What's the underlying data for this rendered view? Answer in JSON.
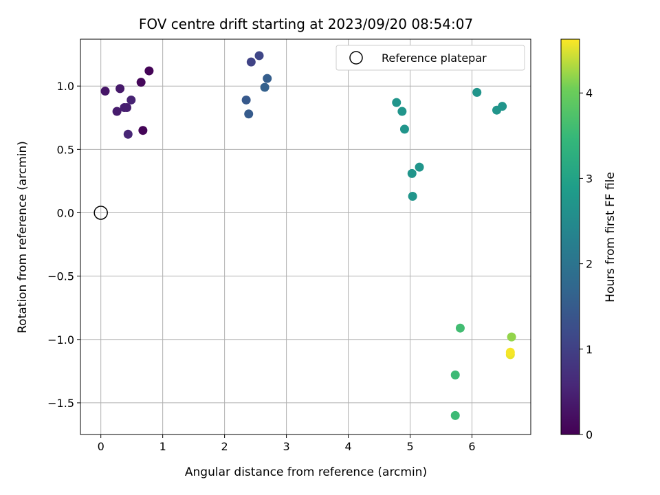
{
  "chart_data": {
    "type": "scatter",
    "title": "FOV centre drift starting at 2023/09/20 08:54:07",
    "xlabel": "Angular distance from reference (arcmin)",
    "ylabel": "Rotation from reference (arcmin)",
    "colorbar_label": "Hours from first FF file",
    "xlim": [
      -0.33,
      6.95
    ],
    "ylim": [
      -1.75,
      1.37
    ],
    "clim": [
      0,
      4.63
    ],
    "x_ticks": [
      0,
      1,
      2,
      3,
      4,
      5,
      6
    ],
    "x_tick_labels": [
      "0",
      "1",
      "2",
      "3",
      "4",
      "5",
      "6"
    ],
    "y_ticks": [
      1.0,
      0.5,
      0.0,
      -0.5,
      -1.0,
      -1.5
    ],
    "y_tick_labels": [
      "1.0",
      "0.5",
      "0.0",
      "−0.5",
      "−1.0",
      "−1.5"
    ],
    "colorbar_ticks": [
      0,
      1,
      2,
      3,
      4
    ],
    "colorbar_tick_labels": [
      "0",
      "1",
      "2",
      "3",
      "4"
    ],
    "colormap": "viridis",
    "grid": true,
    "legend_position": "top-right",
    "legend_entries": [
      "Reference platepar"
    ],
    "reference_point": {
      "name": "Reference platepar",
      "x": 0,
      "y": 0
    },
    "series": [
      {
        "points": [
          {
            "x": 0.07,
            "y": 0.96,
            "h": 0.3
          },
          {
            "x": 0.31,
            "y": 0.98,
            "h": 0.35
          },
          {
            "x": 0.78,
            "y": 1.12,
            "h": 0.05
          },
          {
            "x": 0.65,
            "y": 1.03,
            "h": 0.1
          },
          {
            "x": 0.26,
            "y": 0.8,
            "h": 0.4
          },
          {
            "x": 0.38,
            "y": 0.83,
            "h": 0.45
          },
          {
            "x": 0.42,
            "y": 0.83,
            "h": 0.45
          },
          {
            "x": 0.49,
            "y": 0.89,
            "h": 0.5
          },
          {
            "x": 0.68,
            "y": 0.65,
            "h": 0.05
          },
          {
            "x": 0.44,
            "y": 0.62,
            "h": 0.55
          },
          {
            "x": 2.43,
            "y": 1.19,
            "h": 1.05
          },
          {
            "x": 2.56,
            "y": 1.24,
            "h": 1.1
          },
          {
            "x": 2.69,
            "y": 1.06,
            "h": 1.55
          },
          {
            "x": 2.65,
            "y": 0.99,
            "h": 1.6
          },
          {
            "x": 2.35,
            "y": 0.89,
            "h": 1.45
          },
          {
            "x": 2.39,
            "y": 0.78,
            "h": 1.5
          },
          {
            "x": 4.78,
            "y": 0.87,
            "h": 2.7
          },
          {
            "x": 4.87,
            "y": 0.8,
            "h": 2.7
          },
          {
            "x": 4.91,
            "y": 0.66,
            "h": 2.7
          },
          {
            "x": 5.15,
            "y": 0.36,
            "h": 2.7
          },
          {
            "x": 5.03,
            "y": 0.31,
            "h": 2.7
          },
          {
            "x": 5.04,
            "y": 0.13,
            "h": 2.7
          },
          {
            "x": 6.08,
            "y": 0.95,
            "h": 2.7
          },
          {
            "x": 6.49,
            "y": 0.84,
            "h": 2.7
          },
          {
            "x": 6.4,
            "y": 0.81,
            "h": 2.7
          },
          {
            "x": 5.81,
            "y": -0.91,
            "h": 3.6
          },
          {
            "x": 5.73,
            "y": -1.28,
            "h": 3.55
          },
          {
            "x": 5.73,
            "y": -1.6,
            "h": 3.55
          },
          {
            "x": 6.64,
            "y": -0.98,
            "h": 4.2
          },
          {
            "x": 6.62,
            "y": -1.12,
            "h": 4.55
          },
          {
            "x": 6.62,
            "y": -1.1,
            "h": 4.6
          }
        ]
      }
    ]
  }
}
